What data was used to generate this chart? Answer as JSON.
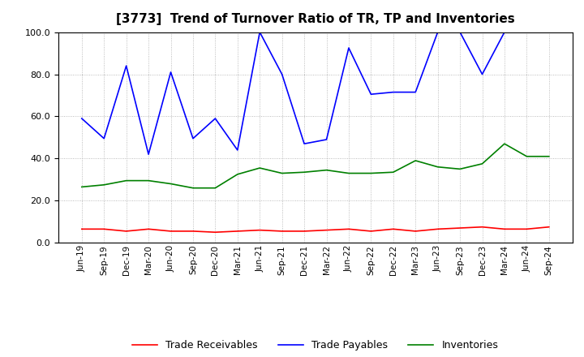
{
  "title": "[3773]  Trend of Turnover Ratio of TR, TP and Inventories",
  "labels": [
    "Jun-19",
    "Sep-19",
    "Dec-19",
    "Mar-20",
    "Jun-20",
    "Sep-20",
    "Dec-20",
    "Mar-21",
    "Jun-21",
    "Sep-21",
    "Dec-21",
    "Mar-22",
    "Jun-22",
    "Sep-22",
    "Dec-22",
    "Mar-23",
    "Jun-23",
    "Sep-23",
    "Dec-23",
    "Mar-24",
    "Jun-24",
    "Sep-24"
  ],
  "trade_receivables": [
    6.5,
    6.5,
    5.5,
    6.5,
    5.5,
    5.5,
    5.0,
    5.5,
    6.0,
    5.5,
    5.5,
    6.0,
    6.5,
    5.5,
    6.5,
    5.5,
    6.5,
    7.0,
    7.5,
    6.5,
    6.5,
    7.5
  ],
  "trade_payables": [
    59.0,
    49.5,
    84.0,
    42.0,
    81.0,
    49.5,
    59.0,
    44.0,
    100.0,
    80.0,
    47.0,
    49.0,
    92.5,
    70.5,
    71.5,
    71.5,
    100.0,
    100.0,
    80.0,
    100.0,
    100.0,
    100.0
  ],
  "inventories": [
    26.5,
    27.5,
    29.5,
    29.5,
    28.0,
    26.0,
    26.0,
    32.5,
    35.5,
    33.0,
    33.5,
    34.5,
    33.0,
    33.0,
    33.5,
    39.0,
    36.0,
    35.0,
    37.5,
    47.0,
    41.0,
    41.0
  ],
  "ylim": [
    0.0,
    100.0
  ],
  "yticks": [
    0.0,
    20.0,
    40.0,
    60.0,
    80.0,
    100.0
  ],
  "tr_color": "#ff0000",
  "tp_color": "#0000ff",
  "inv_color": "#008000",
  "legend_labels": [
    "Trade Receivables",
    "Trade Payables",
    "Inventories"
  ],
  "background_color": "#ffffff",
  "grid_color": "#aaaaaa"
}
